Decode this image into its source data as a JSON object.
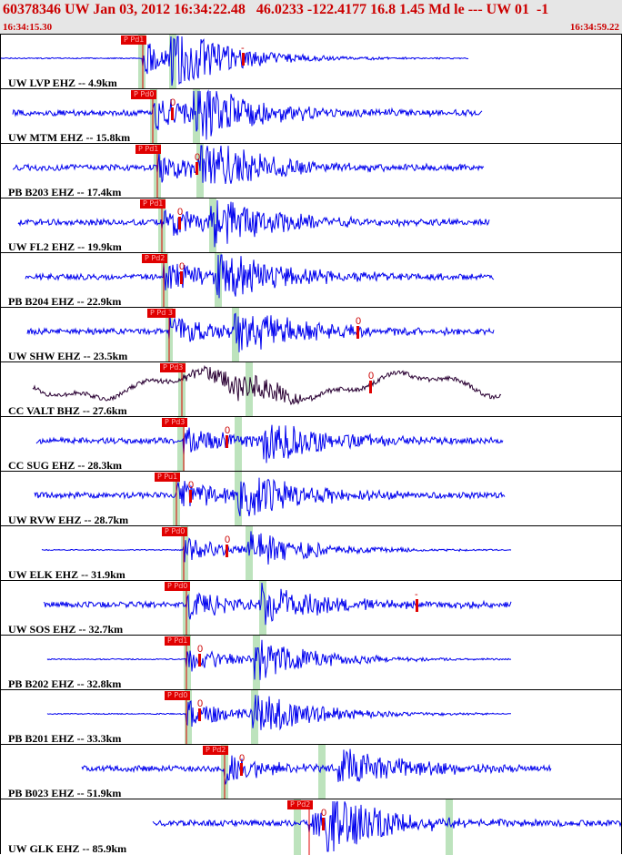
{
  "header": {
    "title": "60378346 UW Jan 03, 2012 16:34:22.48   46.0233 -122.4177 16.8 1.45 Md le --- UW 01  -1",
    "start_time": "16:34:15.30",
    "end_time": "16:34:59.22"
  },
  "colors": {
    "trace": "#0000ee",
    "trace_bb": "#2a0033",
    "pick": "#e00000",
    "window": "#bde3bd",
    "header_bg": "#e6e6e6",
    "text_red": "#cc0000"
  },
  "traces": [
    {
      "label": "UW LVP EHZ -- 4.9km",
      "pick_tag": "P Pd1",
      "amp_mark": "-"
    },
    {
      "label": "UW MTM EHZ -- 15.8km",
      "pick_tag": "P Pd0",
      "amp_mark": "0"
    },
    {
      "label": "PB B203 EHZ -- 17.4km",
      "pick_tag": "P Pd1",
      "amp_mark": "0"
    },
    {
      "label": "UW FL2 EHZ -- 19.9km",
      "pick_tag": "P Pd1",
      "amp_mark": "0"
    },
    {
      "label": "PB B204 EHZ -- 22.9km",
      "pick_tag": "P Pd2",
      "amp_mark": "0"
    },
    {
      "label": "UW SHW EHZ -- 23.5km",
      "pick_tag": "P Pd 3",
      "amp_mark": "0"
    },
    {
      "label": "CC VALT BHZ -- 27.6km",
      "pick_tag": "P Pd3",
      "amp_mark": "0"
    },
    {
      "label": "CC SUG EHZ -- 28.3km",
      "pick_tag": "P Pd3",
      "amp_mark": "0"
    },
    {
      "label": "UW RVW EHZ -- 28.7km",
      "pick_tag": "P Pu1",
      "amp_mark": "0"
    },
    {
      "label": "UW ELK EHZ -- 31.9km",
      "pick_tag": "P Pd0",
      "amp_mark": "0"
    },
    {
      "label": "UW SOS EHZ -- 32.7km",
      "pick_tag": "P Pd0",
      "amp_mark": "-"
    },
    {
      "label": "PB B202 EHZ -- 32.8km",
      "pick_tag": "P Pd1",
      "amp_mark": "0"
    },
    {
      "label": "PB B201 EHZ -- 33.3km",
      "pick_tag": "P Pd0",
      "amp_mark": "0"
    },
    {
      "label": "PB B023 EHZ -- 51.9km",
      "pick_tag": "P Pd2",
      "amp_mark": "0"
    },
    {
      "label": "UW GLK EHZ -- 85.9km",
      "pick_tag": "P Pd2",
      "amp_mark": "0"
    }
  ]
}
